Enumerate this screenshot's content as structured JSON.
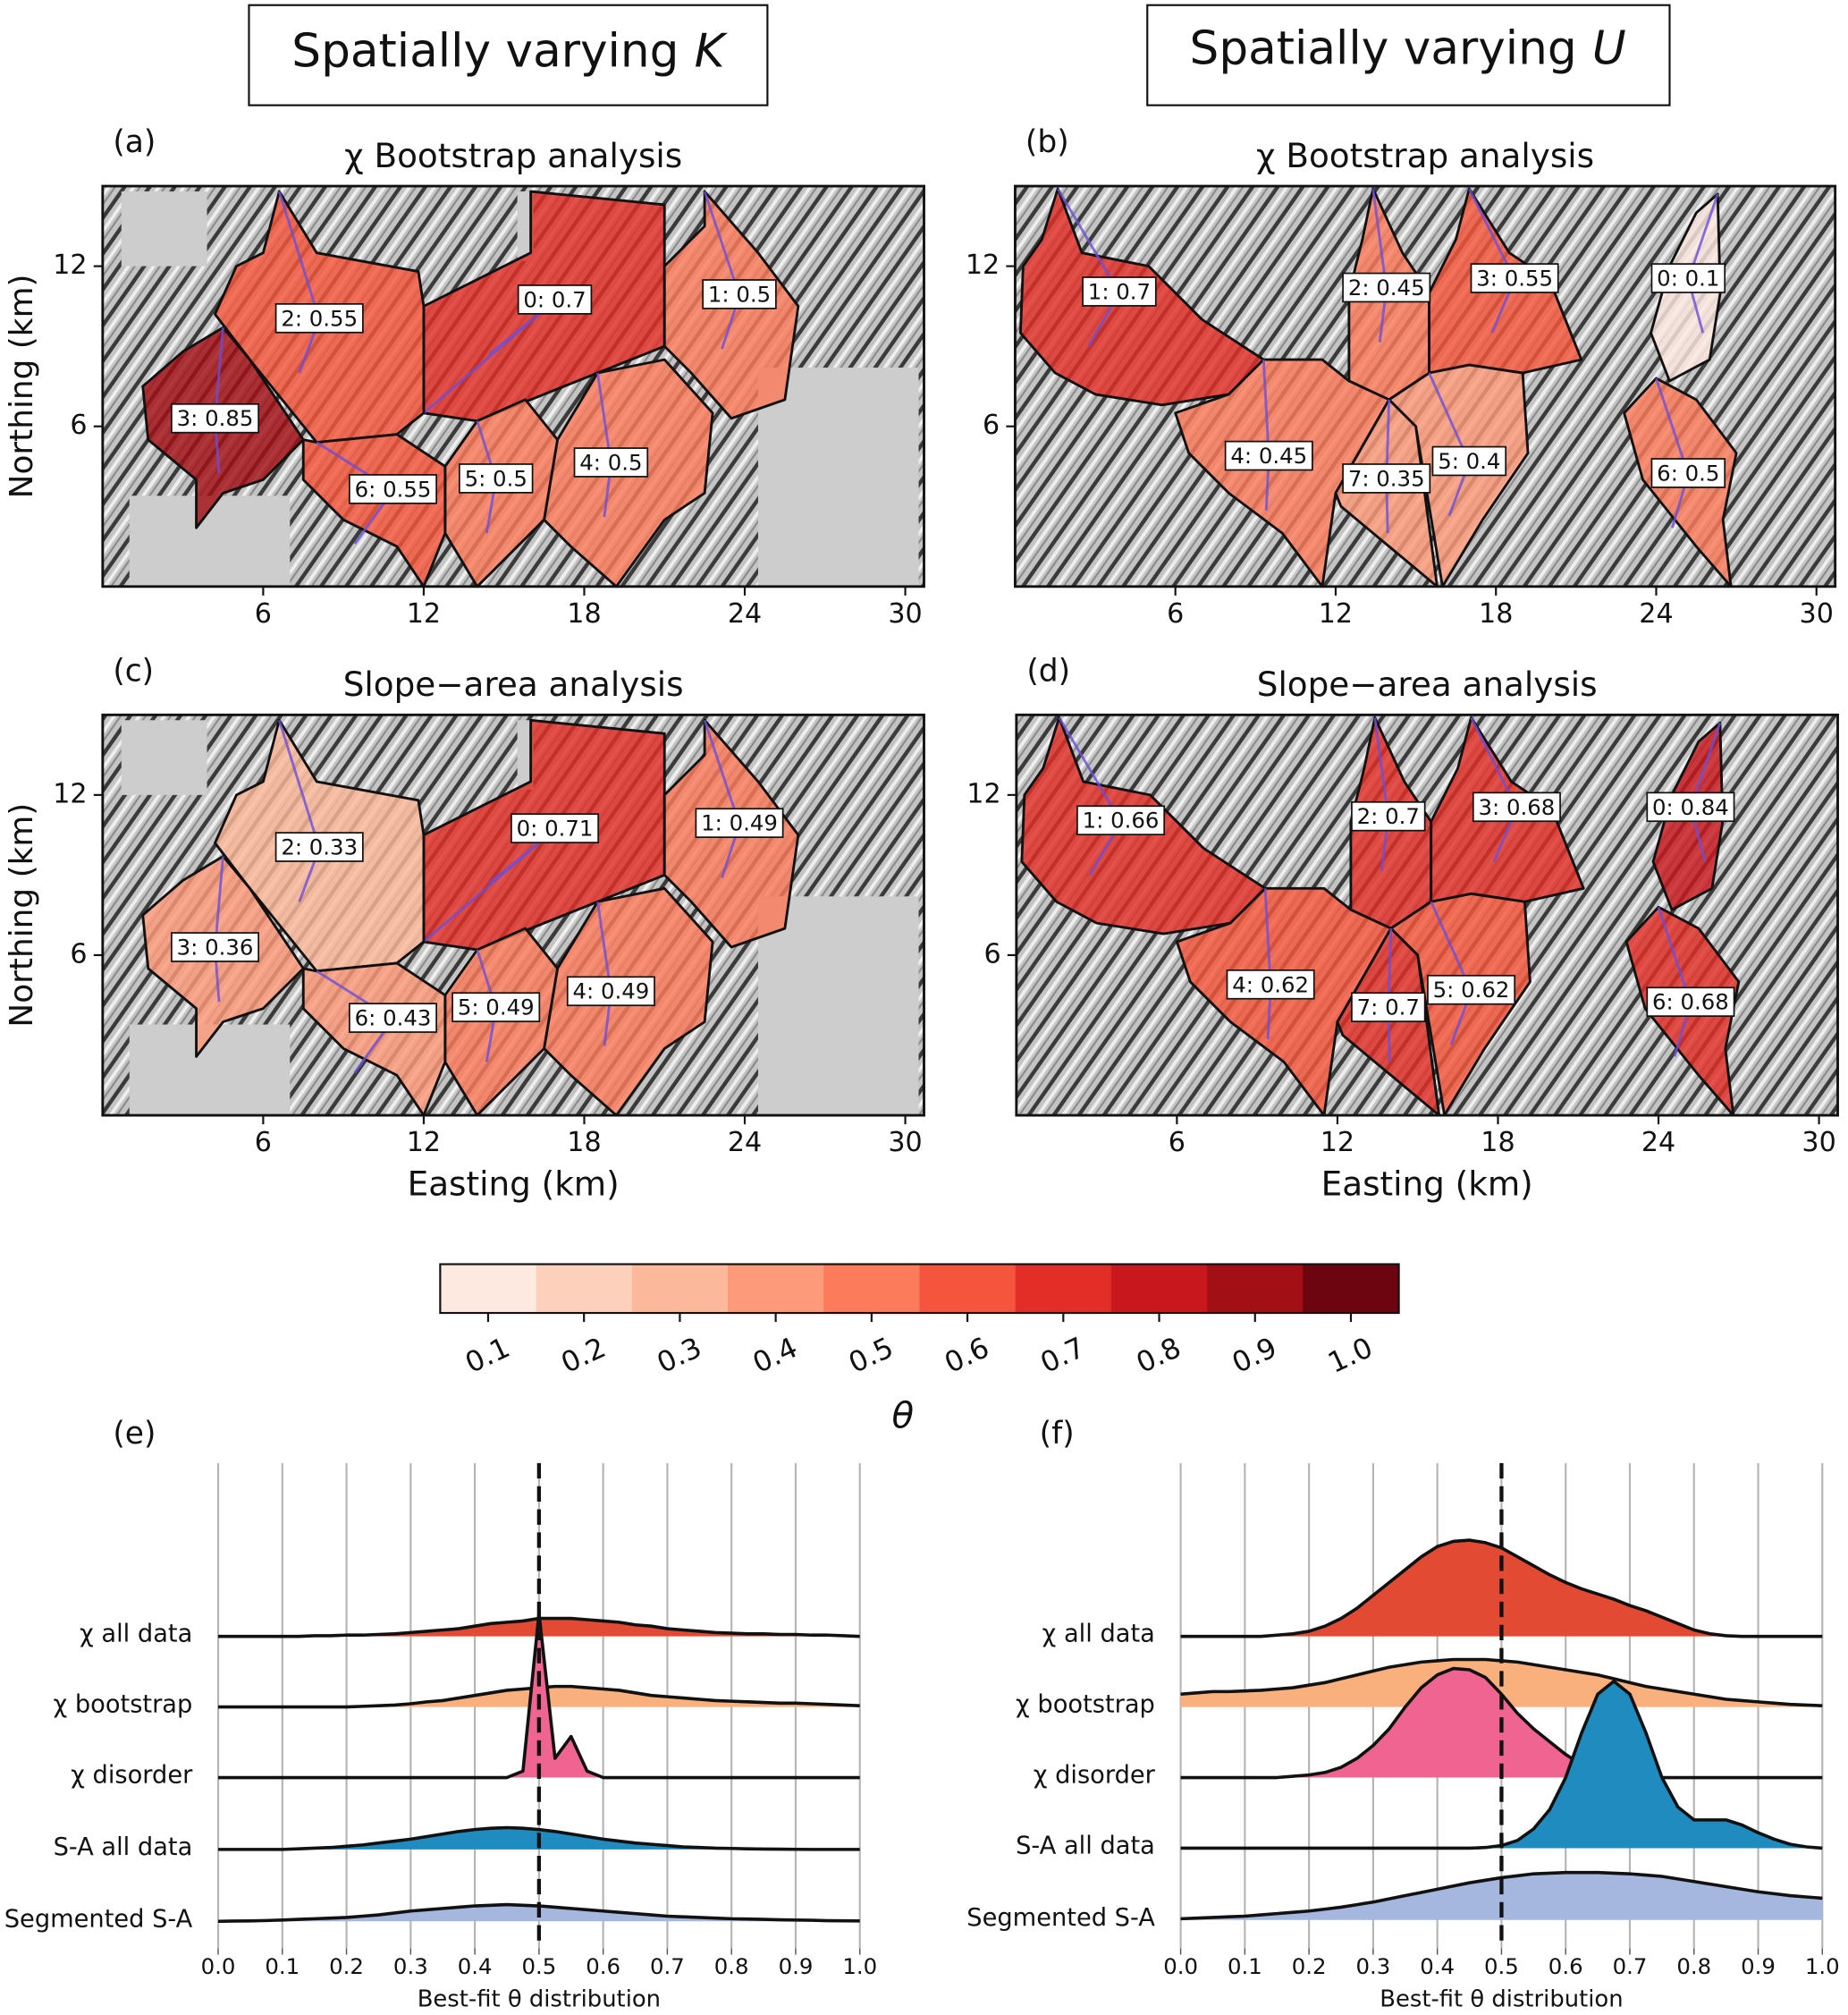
{
  "header": {
    "left": {
      "text": "Spatially varying",
      "symbol": "K"
    },
    "right": {
      "text": "Spatially varying",
      "symbol": "U"
    }
  },
  "chart_data": [
    {
      "type": "map",
      "panel": "(a)",
      "title": "χ  Bootstrap analysis",
      "ylabel": "Northing (km)",
      "xlim": [
        0,
        30.7
      ],
      "ylim": [
        0,
        15
      ],
      "xticks": [
        6,
        12,
        18,
        24,
        30
      ],
      "yticks": [
        6,
        12
      ],
      "values": [
        0.7,
        0.5,
        0.55,
        0.85,
        0.5,
        0.5,
        0.55
      ],
      "value_labels": [
        "0: 0.7",
        "1: 0.5",
        "2: 0.55",
        "3: 0.85",
        "4: 0.5",
        "5: 0.5",
        "6: 0.55"
      ]
    },
    {
      "type": "map",
      "panel": "(b)",
      "title": "χ Bootstrap analysis",
      "xlim": [
        0,
        30.7
      ],
      "ylim": [
        0,
        15
      ],
      "xticks": [
        6,
        12,
        18,
        24,
        30
      ],
      "yticks": [
        6,
        12
      ],
      "values": [
        0.1,
        0.7,
        0.45,
        0.55,
        0.45,
        0.4,
        0.5,
        0.35
      ],
      "value_labels": [
        "0: 0.1",
        "1: 0.7",
        "2: 0.45",
        "3: 0.55",
        "4: 0.45",
        "5: 0.4",
        "6: 0.5",
        "7: 0.35"
      ]
    },
    {
      "type": "map",
      "panel": "(c)",
      "title": "Slope−area analysis",
      "ylabel": "Northing (km)",
      "xlabel": "Easting (km)",
      "xlim": [
        0,
        30.7
      ],
      "ylim": [
        0,
        15
      ],
      "xticks": [
        6,
        12,
        18,
        24,
        30
      ],
      "yticks": [
        6,
        12
      ],
      "values": [
        0.71,
        0.49,
        0.33,
        0.36,
        0.49,
        0.49,
        0.43
      ],
      "value_labels": [
        "0: 0.71",
        "1: 0.49",
        "2: 0.33",
        "3: 0.36",
        "4: 0.49",
        "5: 0.49",
        "6: 0.43"
      ]
    },
    {
      "type": "map",
      "panel": "(d)",
      "title": "Slope−area analysis",
      "xlabel": "Easting (km)",
      "xlim": [
        0,
        30.7
      ],
      "ylim": [
        0,
        15
      ],
      "xticks": [
        6,
        12,
        18,
        24,
        30
      ],
      "yticks": [
        6,
        12
      ],
      "values": [
        0.84,
        0.66,
        0.7,
        0.68,
        0.62,
        0.62,
        0.68,
        0.7
      ],
      "value_labels": [
        "0: 0.84",
        "1: 0.66",
        "2: 0.7",
        "3: 0.68",
        "4: 0.62",
        "5: 0.62",
        "6: 0.68",
        "7: 0.7"
      ]
    },
    {
      "type": "colorbar",
      "label": "θ",
      "xlim": [
        0.05,
        1.05
      ],
      "xticks": [
        0.1,
        0.2,
        0.3,
        0.4,
        0.5,
        0.6,
        0.7,
        0.8,
        0.9,
        {
          "value": 1,
          "label": "1.0"
        }
      ],
      "colors": [
        "#fee9e1",
        "#fdd0bc",
        "#fcb89a",
        "#fc9a79",
        "#fb7b5b",
        "#f5553c",
        "#e22e27",
        "#c9181d",
        "#a20f15",
        "#6d0510"
      ]
    },
    {
      "type": "ridgeline",
      "panel": "(e)",
      "xlabel": "Best-fit θ distribution",
      "xlim": [
        0,
        1
      ],
      "vline": 0.5,
      "grid": true,
      "xticks": [
        {
          "value": 0,
          "label": "0.0"
        },
        0.1,
        0.2,
        0.3,
        0.4,
        0.5,
        0.6,
        0.7,
        0.8,
        0.9,
        {
          "value": 1,
          "label": "1.0"
        }
      ],
      "x": [
        0,
        0.025,
        0.05,
        0.075,
        0.1,
        0.125,
        0.15,
        0.175,
        0.2,
        0.225,
        0.25,
        0.275,
        0.3,
        0.325,
        0.35,
        0.375,
        0.4,
        0.425,
        0.45,
        0.475,
        0.5,
        0.525,
        0.55,
        0.575,
        0.6,
        0.625,
        0.65,
        0.675,
        0.7,
        0.725,
        0.75,
        0.775,
        0.8,
        0.825,
        0.85,
        0.875,
        0.9,
        0.925,
        0.95,
        0.975,
        1
      ],
      "series": [
        {
          "name": "χ all data",
          "color": "#e34a33",
          "values": [
            0,
            0,
            0,
            0,
            0,
            0,
            0.5,
            0.5,
            1,
            1,
            1.5,
            2,
            3,
            4,
            5,
            6,
            8,
            10,
            11,
            12,
            14,
            14,
            14,
            13,
            12,
            11,
            9,
            8,
            6,
            5,
            4,
            3,
            2.5,
            2,
            2,
            1.5,
            1.5,
            1,
            1,
            0.5,
            0
          ]
        },
        {
          "name": "χ bootstrap",
          "color": "#f9b07c",
          "values": [
            0,
            0,
            0,
            0,
            0,
            0,
            0,
            0,
            0,
            0.5,
            1,
            1.5,
            2.5,
            4,
            5,
            7,
            9,
            11,
            13,
            14,
            15,
            16,
            16,
            15,
            14,
            13,
            11,
            9,
            8,
            7,
            6,
            5,
            4.5,
            4,
            3.5,
            3,
            3,
            2.5,
            2,
            1.5,
            1
          ]
        },
        {
          "name": "χ disorder",
          "color": "#ef6490",
          "values": [
            0,
            0,
            0,
            0,
            0,
            0,
            0,
            0,
            0,
            0,
            0,
            0,
            0,
            0,
            0,
            0,
            0,
            0,
            0,
            5,
            128,
            15,
            32,
            5,
            0,
            0,
            0,
            0,
            0,
            0,
            0,
            0,
            0,
            0,
            0,
            0,
            0,
            0,
            0,
            0,
            0
          ]
        },
        {
          "name": "S-A all data",
          "color": "#1f8bbf",
          "values": [
            0,
            0,
            0,
            0,
            0,
            0.5,
            1,
            1.5,
            2.5,
            3.5,
            5,
            6.5,
            8,
            10,
            12,
            14,
            15.5,
            16.5,
            17,
            16.5,
            15.5,
            14,
            12,
            10,
            8,
            6.5,
            5,
            4,
            3,
            2,
            1.5,
            1,
            0.8,
            0.5,
            0.3,
            0.2,
            0.1,
            0,
            0,
            0,
            0
          ]
        },
        {
          "name": "Segmented S-A",
          "color": "#a6b7df",
          "values": [
            0,
            0.2,
            0.3,
            0.6,
            1,
            1.5,
            2,
            2.5,
            3,
            4,
            5,
            6.5,
            8,
            9,
            10,
            11,
            12,
            12.5,
            13,
            12.5,
            12,
            11,
            10,
            9,
            8,
            7,
            6,
            5,
            4,
            3.5,
            3,
            2.5,
            2,
            1.8,
            1.5,
            1.2,
            1,
            0.8,
            0.5,
            0.4,
            0.3
          ]
        }
      ]
    },
    {
      "type": "ridgeline",
      "panel": "(f)",
      "xlabel": "Best-fit θ distribution",
      "xlim": [
        0,
        1
      ],
      "vline": 0.5,
      "grid": true,
      "xticks": [
        {
          "value": 0,
          "label": "0.0"
        },
        0.1,
        0.2,
        0.3,
        0.4,
        0.5,
        0.6,
        0.7,
        0.8,
        0.9,
        {
          "value": 1,
          "label": "1.0"
        }
      ],
      "x": [
        0,
        0.025,
        0.05,
        0.075,
        0.1,
        0.125,
        0.15,
        0.175,
        0.2,
        0.225,
        0.25,
        0.275,
        0.3,
        0.325,
        0.35,
        0.375,
        0.4,
        0.425,
        0.45,
        0.475,
        0.5,
        0.525,
        0.55,
        0.575,
        0.6,
        0.625,
        0.65,
        0.675,
        0.7,
        0.725,
        0.75,
        0.775,
        0.8,
        0.825,
        0.85,
        0.875,
        0.9,
        0.925,
        0.95,
        0.975,
        1
      ],
      "series": [
        {
          "name": "χ all data",
          "color": "#e34a33",
          "values": [
            0,
            0,
            0,
            0,
            0,
            0,
            1,
            2,
            4,
            8,
            14,
            22,
            32,
            42,
            52,
            62,
            70,
            74,
            75,
            73,
            69,
            62,
            55,
            48,
            42,
            37,
            33,
            29,
            24,
            20,
            15,
            10,
            5,
            2,
            0.5,
            0,
            0,
            0,
            0,
            0,
            0
          ]
        },
        {
          "name": "χ bootstrap",
          "color": "#f9b07c",
          "values": [
            10,
            11,
            12,
            12,
            12.5,
            13,
            14,
            15,
            17,
            19,
            22,
            25,
            28,
            31,
            33,
            35,
            36,
            37,
            37,
            37,
            36,
            35,
            33,
            31,
            29,
            27,
            25,
            22,
            19,
            16,
            14,
            12,
            10,
            8,
            6,
            5,
            4,
            3,
            2,
            1.5,
            1
          ]
        },
        {
          "name": "χ disorder",
          "color": "#ef6490",
          "values": [
            0,
            0,
            0,
            0,
            0,
            0,
            0,
            1,
            2,
            4,
            8,
            15,
            25,
            38,
            55,
            70,
            80,
            85,
            84,
            78,
            65,
            50,
            38,
            28,
            18,
            10,
            5,
            2,
            1,
            0,
            0,
            0,
            0,
            0,
            0,
            0,
            0,
            0,
            0,
            0,
            0
          ]
        },
        {
          "name": "S-A all data",
          "color": "#1f8bbf",
          "values": [
            0,
            0,
            0,
            0,
            0,
            0,
            0,
            0,
            0,
            0,
            0,
            0,
            0,
            0,
            0,
            0,
            0,
            0,
            0,
            0.5,
            2,
            6,
            15,
            30,
            55,
            90,
            120,
            130,
            120,
            90,
            55,
            32,
            22,
            22,
            22,
            18,
            12,
            7,
            3,
            1,
            0
          ]
        },
        {
          "name": "Segmented S-A",
          "color": "#a6b7df",
          "values": [
            1,
            1.5,
            2,
            2.5,
            3,
            4,
            5,
            6,
            7,
            8.5,
            10,
            12,
            14,
            16.5,
            19,
            21.5,
            24,
            26.5,
            29,
            31,
            33,
            34.5,
            36,
            36.5,
            37,
            37,
            37,
            36.5,
            36,
            35,
            34,
            32,
            30,
            28,
            26,
            24,
            22,
            20.5,
            19,
            18,
            17
          ]
        }
      ]
    }
  ]
}
